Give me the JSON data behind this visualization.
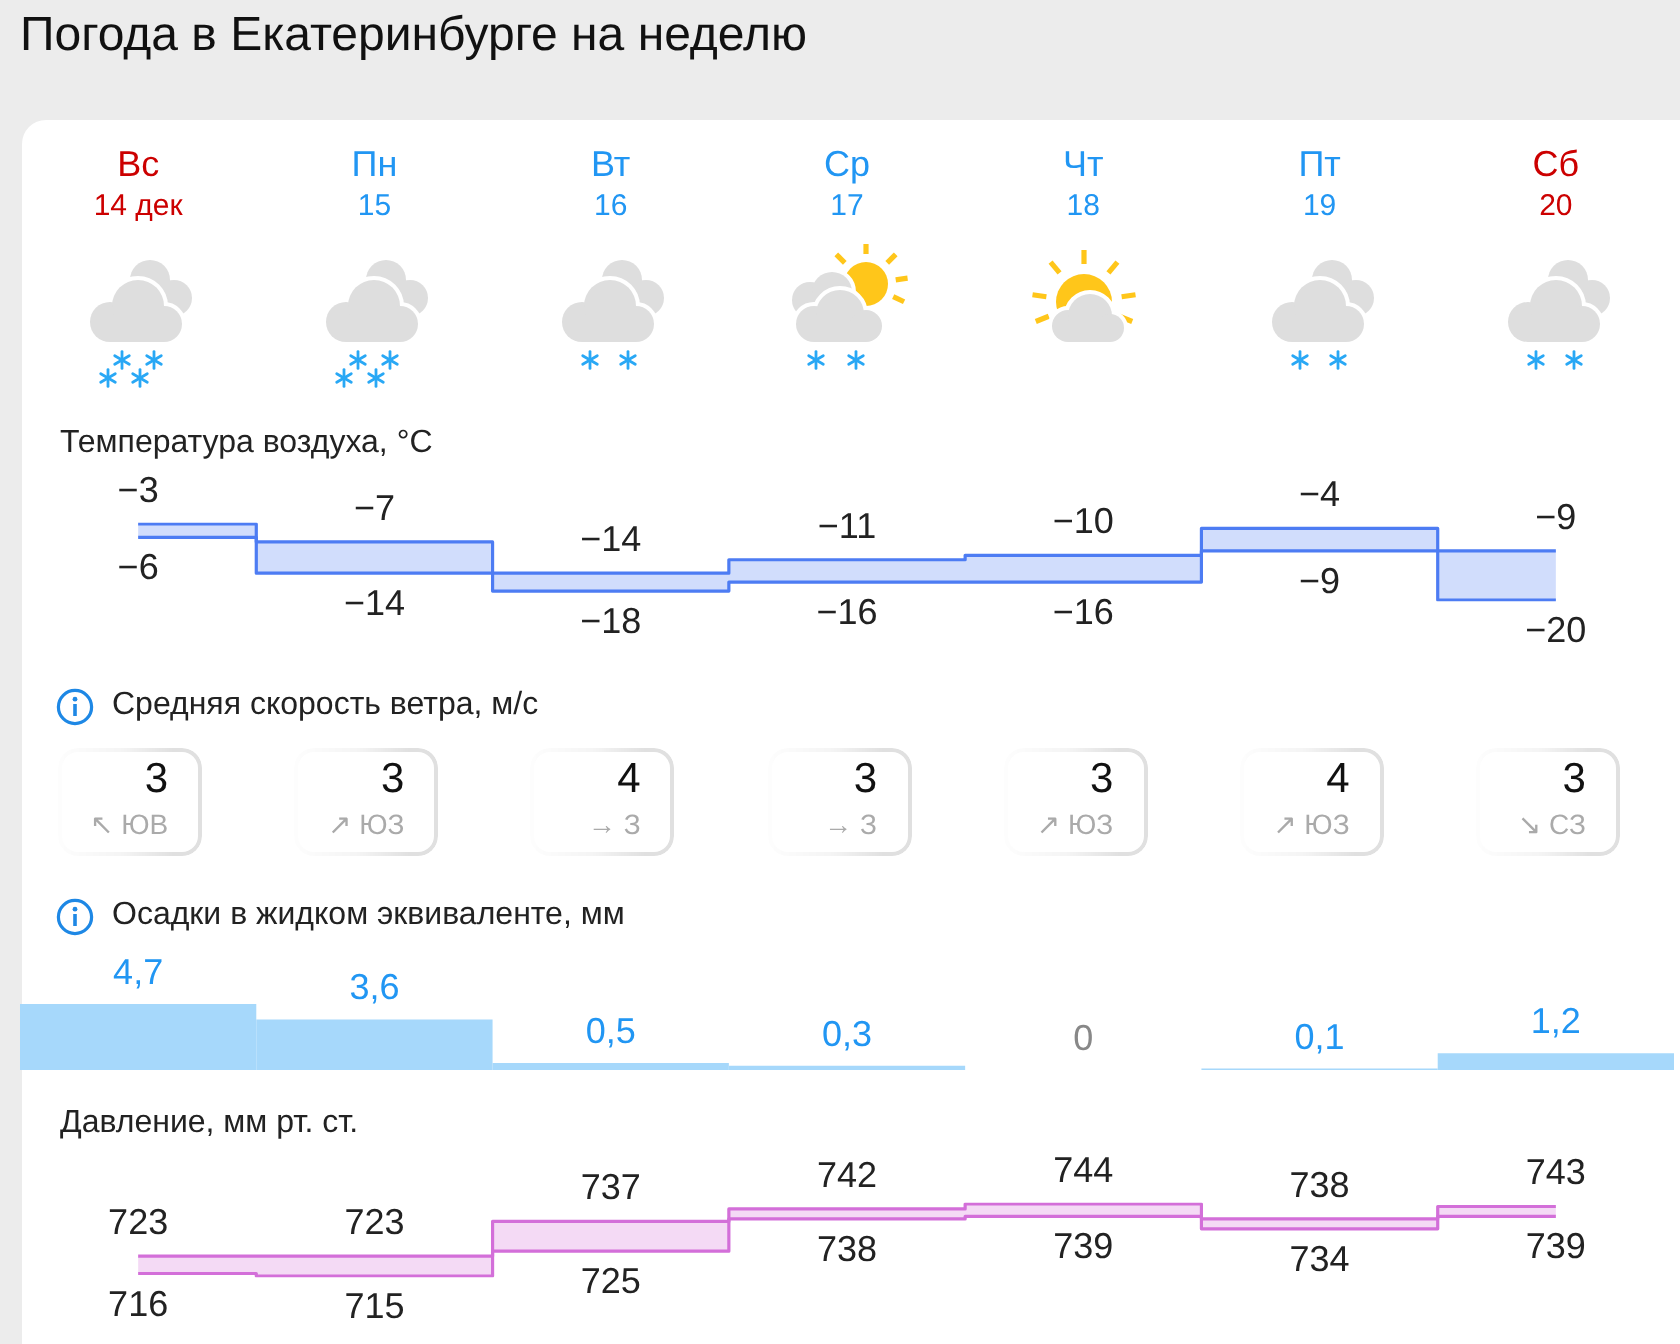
{
  "chart_data": [
    {
      "type": "step",
      "title": "Погода в Екатеринбурге на неделю",
      "subtitle": "Температура воздуха, °C",
      "categories": [
        "Вс 14 дек",
        "Пн 15",
        "Вт 16",
        "Ср 17",
        "Чт 18",
        "Пт 19",
        "Сб 20"
      ],
      "tick_labels": "x",
      "data_labels": true,
      "marker": "none",
      "series": [
        {
          "color": "#4d7cf3",
          "values": [
            -3,
            -7,
            -14,
            -11,
            -10,
            -4,
            -9
          ],
          "lower": [
            -6,
            -14,
            -18,
            -16,
            -16,
            -9,
            -20
          ],
          "upper": [
            -3,
            -7,
            -14,
            -11,
            -10,
            -4,
            -9
          ]
        },
        {
          "color": "#4d7cf3",
          "values": [
            -6,
            -14,
            -18,
            -16,
            -16,
            -9,
            -20
          ]
        }
      ]
    },
    {
      "type": "other",
      "title": "Средняя скорость ветра, м/с",
      "values": [
        3,
        3,
        4,
        3,
        3,
        4,
        3
      ],
      "data_labels": true,
      "annotations": [
        "↖ ЮВ",
        "↗ ЮЗ",
        "→ З",
        "→ З",
        "↗ ЮЗ",
        "↗ ЮЗ",
        "↘ СЗ"
      ]
    },
    {
      "type": "bar",
      "title": "Осадки в жидком эквиваленте, мм",
      "categories": [
        null,
        null,
        null,
        null,
        null,
        null,
        null
      ],
      "values": [
        4.7,
        3.6,
        0.5,
        0.3,
        0,
        0.1,
        1.2
      ],
      "value_labels": [
        "4,7",
        "3,6",
        "0,5",
        "0,3",
        "0",
        "0,1",
        "1,2"
      ],
      "color": "#a6d8fb",
      "tick_labels": false
    },
    {
      "type": "step",
      "title": "Давление, мм рт. ст.",
      "categories": [
        null,
        null,
        null,
        null,
        null,
        null,
        null
      ],
      "tick_labels": false,
      "data_labels": true,
      "marker": "none",
      "series": [
        {
          "color": "#d36fd9",
          "values": [
            723,
            723,
            737,
            742,
            744,
            738,
            743
          ],
          "lower": [
            716,
            715,
            725,
            738,
            739,
            734,
            739
          ],
          "upper": [
            723,
            723,
            737,
            742,
            744,
            738,
            743
          ]
        },
        {
          "color": "#d36fd9",
          "values": [
            716,
            715,
            725,
            738,
            739,
            734,
            739
          ]
        }
      ]
    }
  ]
}
